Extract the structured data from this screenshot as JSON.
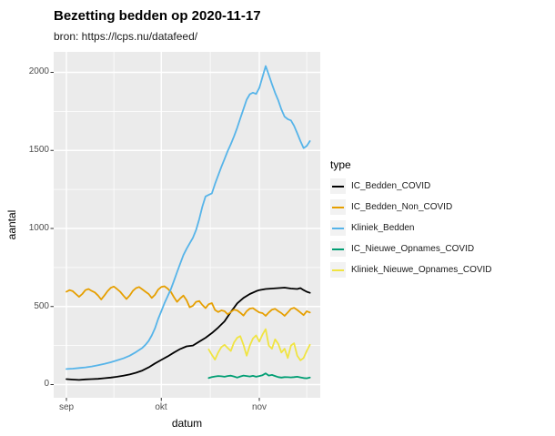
{
  "styles": {
    "panel_bg": "#EBEBEB",
    "grid_color": "#FFFFFF",
    "tick_mark_color": "#333333",
    "tick_label_color": "#4D4D4D",
    "legend_key_bg": "#F2F2F2"
  },
  "axes": {
    "x_ticks": [
      "sep",
      "okt",
      "nov"
    ],
    "y_ticks": [
      "0",
      "500",
      "1000",
      "1500",
      "2000"
    ]
  },
  "chart_data": {
    "type": "line",
    "title": "Bezetting bedden op 2020-11-17",
    "subtitle": "bron: https://lcps.nu/datafeed/",
    "xlabel": "datum",
    "ylabel": "aantal",
    "legend_title": "type",
    "legend_position": "right",
    "grid": "on",
    "x_unit": "days since 2020-09-01",
    "x_domain_days": [
      0,
      77
    ],
    "x_tick_days": [
      0,
      30,
      61
    ],
    "x_minor_days": [
      15,
      45.5,
      76
    ],
    "y_ticks": [
      0,
      500,
      1000,
      1500,
      2000
    ],
    "y_minor": [
      250,
      750,
      1250,
      1750
    ],
    "ylim": [
      0,
      2100
    ],
    "series": [
      {
        "name": "IC_Bedden_COVID",
        "color": "#000000",
        "points": [
          [
            0,
            35
          ],
          [
            2,
            32
          ],
          [
            4,
            30
          ],
          [
            6,
            33
          ],
          [
            8,
            35
          ],
          [
            10,
            37
          ],
          [
            12,
            41
          ],
          [
            14,
            45
          ],
          [
            16,
            50
          ],
          [
            18,
            57
          ],
          [
            20,
            65
          ],
          [
            22,
            76
          ],
          [
            24,
            90
          ],
          [
            26,
            110
          ],
          [
            28,
            135
          ],
          [
            30,
            158
          ],
          [
            32,
            180
          ],
          [
            34,
            205
          ],
          [
            36,
            228
          ],
          [
            38,
            245
          ],
          [
            40,
            250
          ],
          [
            42,
            275
          ],
          [
            44,
            300
          ],
          [
            46,
            330
          ],
          [
            48,
            365
          ],
          [
            50,
            405
          ],
          [
            52,
            465
          ],
          [
            54,
            520
          ],
          [
            56,
            555
          ],
          [
            58,
            580
          ],
          [
            60,
            598
          ],
          [
            61,
            605
          ],
          [
            63,
            612
          ],
          [
            65,
            615
          ],
          [
            67,
            618
          ],
          [
            69,
            621
          ],
          [
            71,
            615
          ],
          [
            73,
            612
          ],
          [
            74,
            618
          ],
          [
            75,
            605
          ],
          [
            76,
            595
          ],
          [
            77,
            588
          ]
        ]
      },
      {
        "name": "IC_Bedden_Non_COVID",
        "color": "#E69F00",
        "points": [
          [
            0,
            595
          ],
          [
            1,
            605
          ],
          [
            2,
            598
          ],
          [
            3,
            580
          ],
          [
            4,
            562
          ],
          [
            5,
            580
          ],
          [
            6,
            605
          ],
          [
            7,
            612
          ],
          [
            8,
            600
          ],
          [
            9,
            590
          ],
          [
            10,
            570
          ],
          [
            11,
            545
          ],
          [
            12,
            570
          ],
          [
            13,
            598
          ],
          [
            14,
            620
          ],
          [
            15,
            628
          ],
          [
            16,
            612
          ],
          [
            17,
            595
          ],
          [
            18,
            570
          ],
          [
            19,
            548
          ],
          [
            20,
            570
          ],
          [
            21,
            600
          ],
          [
            22,
            618
          ],
          [
            23,
            625
          ],
          [
            24,
            610
          ],
          [
            25,
            595
          ],
          [
            26,
            580
          ],
          [
            27,
            555
          ],
          [
            28,
            575
          ],
          [
            29,
            608
          ],
          [
            30,
            625
          ],
          [
            31,
            630
          ],
          [
            32,
            615
          ],
          [
            33,
            595
          ],
          [
            34,
            560
          ],
          [
            35,
            530
          ],
          [
            36,
            552
          ],
          [
            37,
            570
          ],
          [
            38,
            540
          ],
          [
            39,
            495
          ],
          [
            40,
            505
          ],
          [
            41,
            530
          ],
          [
            42,
            535
          ],
          [
            43,
            510
          ],
          [
            44,
            490
          ],
          [
            45,
            515
          ],
          [
            46,
            522
          ],
          [
            47,
            478
          ],
          [
            48,
            465
          ],
          [
            49,
            475
          ],
          [
            50,
            470
          ],
          [
            51,
            450
          ],
          [
            52,
            465
          ],
          [
            53,
            480
          ],
          [
            54,
            475
          ],
          [
            55,
            460
          ],
          [
            56,
            442
          ],
          [
            57,
            470
          ],
          [
            58,
            487
          ],
          [
            59,
            490
          ],
          [
            60,
            475
          ],
          [
            61,
            462
          ],
          [
            62,
            458
          ],
          [
            63,
            440
          ],
          [
            64,
            462
          ],
          [
            65,
            480
          ],
          [
            66,
            485
          ],
          [
            67,
            470
          ],
          [
            68,
            458
          ],
          [
            69,
            440
          ],
          [
            70,
            462
          ],
          [
            71,
            485
          ],
          [
            72,
            492
          ],
          [
            73,
            478
          ],
          [
            74,
            462
          ],
          [
            75,
            445
          ],
          [
            76,
            470
          ],
          [
            77,
            462
          ]
        ]
      },
      {
        "name": "Kliniek_Bedden",
        "color": "#56B4E9",
        "points": [
          [
            0,
            100
          ],
          [
            2,
            102
          ],
          [
            4,
            106
          ],
          [
            6,
            110
          ],
          [
            8,
            116
          ],
          [
            10,
            124
          ],
          [
            12,
            133
          ],
          [
            14,
            143
          ],
          [
            16,
            155
          ],
          [
            18,
            168
          ],
          [
            20,
            185
          ],
          [
            22,
            208
          ],
          [
            24,
            235
          ],
          [
            25,
            255
          ],
          [
            26,
            280
          ],
          [
            27,
            315
          ],
          [
            28,
            360
          ],
          [
            29,
            420
          ],
          [
            30,
            470
          ],
          [
            31,
            520
          ],
          [
            32,
            565
          ],
          [
            33,
            610
          ],
          [
            34,
            665
          ],
          [
            35,
            720
          ],
          [
            36,
            775
          ],
          [
            37,
            830
          ],
          [
            38,
            870
          ],
          [
            39,
            905
          ],
          [
            40,
            940
          ],
          [
            41,
            990
          ],
          [
            42,
            1060
          ],
          [
            43,
            1140
          ],
          [
            44,
            1205
          ],
          [
            45,
            1215
          ],
          [
            46,
            1225
          ],
          [
            47,
            1285
          ],
          [
            48,
            1340
          ],
          [
            49,
            1395
          ],
          [
            50,
            1445
          ],
          [
            51,
            1495
          ],
          [
            52,
            1540
          ],
          [
            53,
            1590
          ],
          [
            54,
            1645
          ],
          [
            55,
            1705
          ],
          [
            56,
            1765
          ],
          [
            57,
            1825
          ],
          [
            58,
            1860
          ],
          [
            59,
            1870
          ],
          [
            60,
            1862
          ],
          [
            61,
            1900
          ],
          [
            62,
            1970
          ],
          [
            63,
            2040
          ],
          [
            64,
            1985
          ],
          [
            65,
            1925
          ],
          [
            66,
            1868
          ],
          [
            67,
            1820
          ],
          [
            68,
            1762
          ],
          [
            69,
            1716
          ],
          [
            70,
            1700
          ],
          [
            71,
            1692
          ],
          [
            72,
            1658
          ],
          [
            73,
            1610
          ],
          [
            74,
            1560
          ],
          [
            75,
            1515
          ],
          [
            76,
            1528
          ],
          [
            77,
            1560
          ]
        ]
      },
      {
        "name": "IC_Nieuwe_Opnames_COVID",
        "color": "#009E73",
        "points": [
          [
            45,
            42
          ],
          [
            46,
            48
          ],
          [
            47,
            52
          ],
          [
            48,
            55
          ],
          [
            49,
            53
          ],
          [
            50,
            50
          ],
          [
            51,
            55
          ],
          [
            52,
            57
          ],
          [
            53,
            52
          ],
          [
            54,
            45
          ],
          [
            55,
            52
          ],
          [
            56,
            58
          ],
          [
            57,
            55
          ],
          [
            58,
            52
          ],
          [
            59,
            56
          ],
          [
            60,
            50
          ],
          [
            61,
            55
          ],
          [
            62,
            60
          ],
          [
            63,
            72
          ],
          [
            64,
            58
          ],
          [
            65,
            62
          ],
          [
            66,
            55
          ],
          [
            67,
            48
          ],
          [
            68,
            45
          ],
          [
            69,
            48
          ],
          [
            70,
            47
          ],
          [
            71,
            46
          ],
          [
            72,
            48
          ],
          [
            73,
            50
          ],
          [
            74,
            46
          ],
          [
            75,
            42
          ],
          [
            76,
            40
          ],
          [
            77,
            45
          ]
        ]
      },
      {
        "name": "Kliniek_Nieuwe_Opnames_COVID",
        "color": "#F0E442",
        "points": [
          [
            45,
            225
          ],
          [
            46,
            190
          ],
          [
            47,
            160
          ],
          [
            48,
            205
          ],
          [
            49,
            240
          ],
          [
            50,
            255
          ],
          [
            51,
            235
          ],
          [
            52,
            215
          ],
          [
            53,
            270
          ],
          [
            54,
            300
          ],
          [
            55,
            310
          ],
          [
            56,
            255
          ],
          [
            57,
            185
          ],
          [
            58,
            250
          ],
          [
            59,
            295
          ],
          [
            60,
            315
          ],
          [
            61,
            275
          ],
          [
            62,
            320
          ],
          [
            63,
            355
          ],
          [
            64,
            250
          ],
          [
            65,
            230
          ],
          [
            66,
            290
          ],
          [
            67,
            260
          ],
          [
            68,
            205
          ],
          [
            69,
            230
          ],
          [
            70,
            170
          ],
          [
            71,
            250
          ],
          [
            72,
            265
          ],
          [
            73,
            185
          ],
          [
            74,
            155
          ],
          [
            75,
            170
          ],
          [
            76,
            215
          ],
          [
            77,
            255
          ]
        ]
      }
    ]
  }
}
